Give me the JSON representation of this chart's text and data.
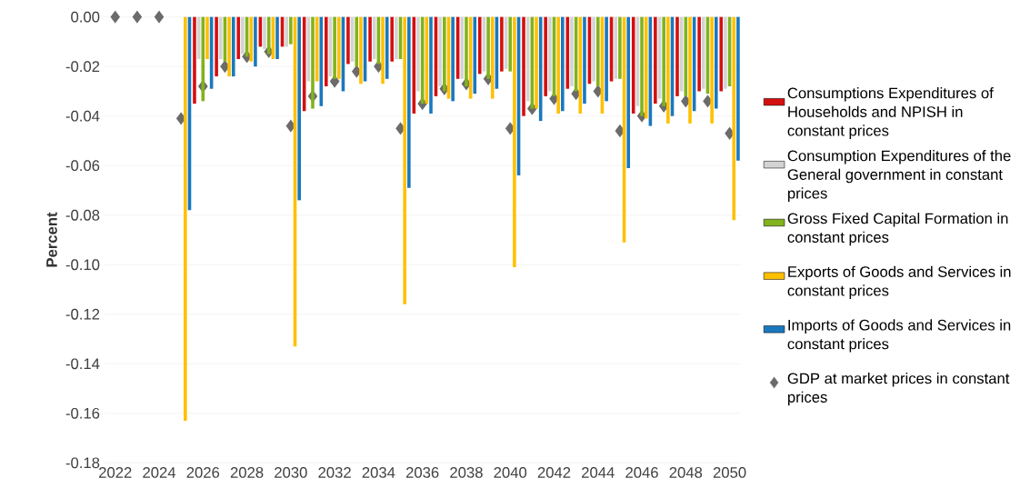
{
  "chart_data": {
    "type": "bar",
    "ylabel": "Percent",
    "categories": [
      "2022",
      null,
      "2024",
      null,
      "2026",
      null,
      "2028",
      null,
      "2030",
      null,
      "2032",
      null,
      "2034",
      null,
      "2036",
      null,
      "2038",
      null,
      "2040",
      null,
      "2042",
      null,
      "2044",
      null,
      "2046",
      null,
      "2048",
      null,
      "2050"
    ],
    "series": [
      {
        "name": "Consumptions Expenditures of Households and NPISH in constant prices",
        "color": "#d40f0f",
        "values": [
          0,
          0,
          0,
          0,
          -0.035,
          -0.024,
          -0.017,
          -0.012,
          -0.012,
          -0.038,
          -0.028,
          -0.019,
          -0.018,
          -0.018,
          -0.039,
          -0.032,
          -0.025,
          -0.023,
          -0.022,
          -0.04,
          -0.032,
          -0.029,
          -0.027,
          -0.026,
          -0.039,
          -0.035,
          -0.032,
          -0.03,
          -0.03
        ]
      },
      {
        "name": "Consumption Expenditures of the General government in constant prices",
        "color": "#d3d3d3",
        "values": [
          0,
          0,
          0,
          0,
          -0.017,
          -0.017,
          -0.015,
          -0.013,
          -0.012,
          -0.026,
          -0.024,
          -0.018,
          -0.017,
          -0.017,
          -0.03,
          -0.028,
          -0.025,
          -0.022,
          -0.021,
          -0.034,
          -0.03,
          -0.028,
          -0.026,
          -0.025,
          -0.036,
          -0.033,
          -0.03,
          -0.029,
          -0.029
        ]
      },
      {
        "name": "Gross Fixed Capital Formation  in constant prices",
        "color": "#82b21c",
        "values": [
          0,
          0,
          0,
          0,
          -0.034,
          -0.018,
          -0.016,
          -0.015,
          -0.011,
          -0.037,
          -0.025,
          -0.02,
          -0.019,
          -0.017,
          -0.035,
          -0.03,
          -0.028,
          -0.025,
          -0.022,
          -0.037,
          -0.032,
          -0.03,
          -0.028,
          -0.025,
          -0.04,
          -0.036,
          -0.032,
          -0.031,
          -0.028
        ]
      },
      {
        "name": "Exports of Goods and Services  in constant prices",
        "color": "#ffc000",
        "values": [
          0,
          0,
          0,
          -0.163,
          -0.017,
          -0.024,
          -0.018,
          -0.017,
          -0.133,
          -0.026,
          -0.025,
          -0.027,
          -0.027,
          -0.116,
          -0.035,
          -0.033,
          -0.033,
          -0.033,
          -0.101,
          -0.037,
          -0.039,
          -0.039,
          -0.039,
          -0.091,
          -0.041,
          -0.043,
          -0.043,
          -0.043,
          -0.082
        ]
      },
      {
        "name": "Imports of Goods and Services in constant prices",
        "color": "#1a78be",
        "values": [
          0,
          0,
          0,
          -0.078,
          -0.029,
          -0.024,
          -0.02,
          -0.017,
          -0.074,
          -0.036,
          -0.03,
          -0.026,
          -0.025,
          -0.069,
          -0.039,
          -0.034,
          -0.031,
          -0.029,
          -0.064,
          -0.042,
          -0.038,
          -0.035,
          -0.034,
          -0.061,
          -0.044,
          -0.04,
          -0.038,
          -0.037,
          -0.058
        ]
      },
      {
        "name": "GDP at market prices in constant prices",
        "type": "scatter",
        "marker": "diamond",
        "color": "#6b6b6b",
        "values": [
          0,
          0,
          0,
          -0.041,
          -0.028,
          -0.02,
          -0.016,
          -0.014,
          -0.044,
          -0.032,
          -0.026,
          -0.022,
          -0.02,
          -0.045,
          -0.035,
          -0.029,
          -0.027,
          -0.025,
          -0.045,
          -0.037,
          -0.033,
          -0.031,
          -0.03,
          -0.046,
          -0.04,
          -0.036,
          -0.034,
          -0.034,
          -0.047
        ]
      }
    ],
    "ylim": [
      -0.18,
      0
    ],
    "yticks": [
      {
        "value": 0,
        "label": "0.00"
      },
      {
        "value": -0.02,
        "label": "-0.02"
      },
      {
        "value": -0.04,
        "label": "-0.04"
      },
      {
        "value": -0.06,
        "label": "-0.06"
      },
      {
        "value": -0.08,
        "label": "-0.08"
      },
      {
        "value": -0.1,
        "label": "-0.10"
      },
      {
        "value": -0.12,
        "label": "-0.12"
      },
      {
        "value": -0.14,
        "label": "-0.14"
      },
      {
        "value": -0.16,
        "label": "-0.16"
      },
      {
        "value": -0.18,
        "label": "-0.18"
      }
    ],
    "grid": "y",
    "legend": "right"
  }
}
